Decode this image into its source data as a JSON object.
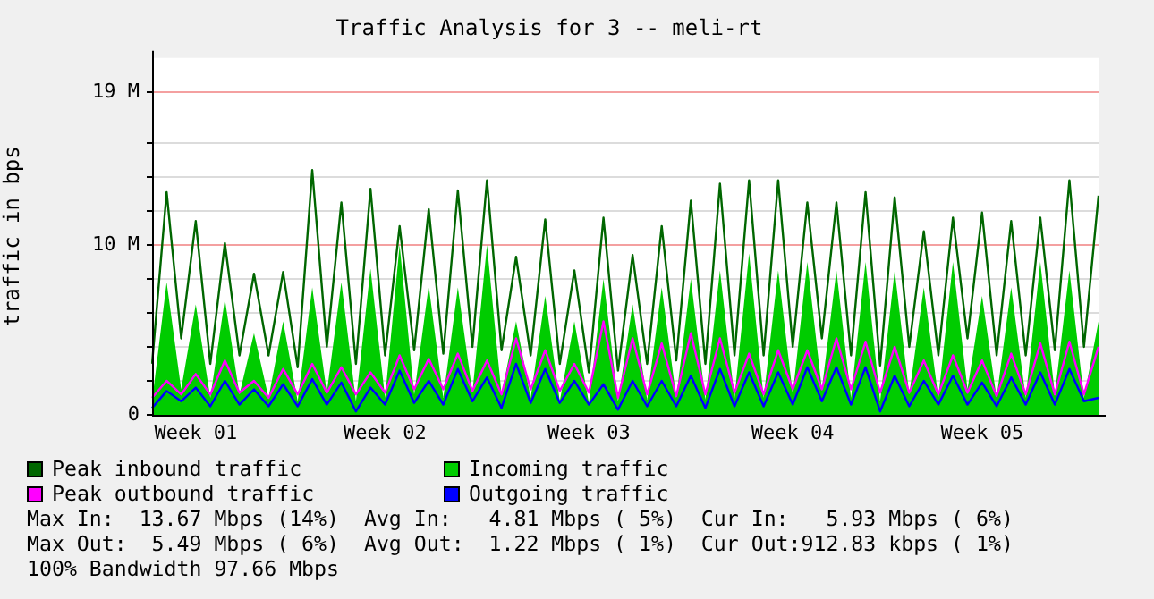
{
  "chart_data": {
    "type": "line",
    "title": "Traffic Analysis for 3 -- meli-rt",
    "ylabel": "traffic in bps",
    "categories": [
      null,
      null,
      null,
      "Week 01",
      null,
      null,
      null,
      null,
      null,
      null,
      null,
      null,
      null,
      null,
      null,
      null,
      "Week 02",
      null,
      null,
      null,
      null,
      null,
      null,
      null,
      null,
      null,
      null,
      null,
      null,
      null,
      "Week 03",
      null,
      null,
      null,
      null,
      null,
      null,
      null,
      null,
      null,
      null,
      null,
      null,
      null,
      "Week 04",
      null,
      null,
      null,
      null,
      null,
      null,
      null,
      null,
      null,
      null,
      null,
      null,
      "Week 05",
      null,
      null,
      null,
      null,
      null,
      null,
      null,
      null
    ],
    "series": [
      {
        "name": "Peak inbound traffic",
        "type": "line",
        "color": "#006600",
        "values": [
          3.0,
          13.1,
          4.5,
          11.4,
          3.0,
          10.1,
          3.5,
          8.3,
          3.5,
          8.4,
          2.8,
          14.4,
          4.0,
          12.5,
          3.0,
          13.3,
          3.5,
          11.1,
          3.8,
          12.1,
          3.6,
          13.2,
          4.0,
          13.8,
          3.8,
          9.3,
          3.5,
          11.5,
          3.0,
          8.5,
          2.5,
          11.6,
          2.6,
          9.4,
          3.0,
          11.1,
          3.2,
          12.6,
          3.0,
          13.6,
          3.5,
          13.8,
          3.5,
          13.8,
          4.0,
          12.5,
          4.5,
          12.5,
          3.5,
          13.1,
          2.9,
          12.8,
          4.0,
          10.8,
          3.5,
          11.6,
          4.5,
          11.9,
          3.5,
          11.4,
          3.5,
          11.6,
          3.8,
          13.8,
          4.0,
          12.9
        ]
      },
      {
        "name": "Incoming traffic",
        "type": "area",
        "color": "#00cc00",
        "values": [
          0.8,
          7.8,
          1.5,
          6.5,
          1.0,
          6.8,
          1.2,
          4.8,
          1.0,
          5.5,
          0.8,
          7.5,
          1.3,
          7.8,
          0.8,
          8.6,
          1.0,
          10.0,
          1.2,
          7.6,
          1.0,
          7.5,
          1.3,
          10.0,
          1.2,
          5.5,
          1.0,
          7.0,
          0.8,
          5.5,
          0.7,
          8.0,
          0.8,
          6.5,
          0.9,
          7.5,
          1.0,
          8.0,
          0.9,
          8.5,
          1.0,
          9.5,
          1.0,
          8.5,
          1.2,
          9.0,
          1.5,
          8.5,
          1.0,
          9.0,
          0.8,
          8.5,
          1.2,
          7.5,
          1.0,
          9.0,
          1.5,
          7.0,
          1.0,
          7.5,
          1.0,
          9.0,
          1.2,
          8.5,
          1.0,
          5.5
        ]
      },
      {
        "name": "Peak outbound traffic",
        "type": "line",
        "color": "#ff00ff",
        "values": [
          1.0,
          2.0,
          1.2,
          2.4,
          1.2,
          3.2,
          1.3,
          2.0,
          1.0,
          2.7,
          1.2,
          3.0,
          1.3,
          2.8,
          1.2,
          2.5,
          1.3,
          3.5,
          1.5,
          3.3,
          1.5,
          3.6,
          1.4,
          3.2,
          1.2,
          4.5,
          1.5,
          3.8,
          1.4,
          3.0,
          1.3,
          5.5,
          1.0,
          4.5,
          1.2,
          4.2,
          1.1,
          4.8,
          1.2,
          4.5,
          1.3,
          3.6,
          1.2,
          3.8,
          1.5,
          3.8,
          1.5,
          4.5,
          1.5,
          4.3,
          1.3,
          4.0,
          1.3,
          3.2,
          1.2,
          3.5,
          1.3,
          3.2,
          1.1,
          3.6,
          1.2,
          4.2,
          1.2,
          4.3,
          1.2,
          4.0
        ]
      },
      {
        "name": "Outgoing traffic",
        "type": "line",
        "color": "#0000ff",
        "values": [
          0.4,
          1.4,
          0.8,
          1.6,
          0.5,
          2.0,
          0.6,
          1.5,
          0.5,
          1.8,
          0.5,
          2.1,
          0.6,
          1.9,
          0.2,
          1.6,
          0.6,
          2.6,
          0.7,
          2.0,
          0.6,
          2.7,
          0.8,
          2.2,
          0.4,
          3.0,
          0.7,
          2.7,
          0.7,
          2.0,
          0.6,
          1.8,
          0.3,
          2.0,
          0.5,
          2.0,
          0.5,
          2.3,
          0.4,
          2.7,
          0.5,
          2.5,
          0.5,
          2.5,
          0.6,
          2.8,
          0.8,
          2.8,
          0.6,
          2.8,
          0.2,
          2.3,
          0.5,
          2.0,
          0.6,
          2.3,
          0.6,
          1.9,
          0.5,
          2.2,
          0.6,
          2.5,
          0.6,
          2.7,
          0.8,
          1.0
        ]
      }
    ],
    "ylim": [
      0,
      21
    ],
    "yticks": [
      0,
      {
        "value": 2,
        "label": null
      },
      {
        "value": 4,
        "label": null
      },
      {
        "value": 6,
        "label": null
      },
      {
        "value": 8,
        "label": null
      },
      {
        "value": 10,
        "label": "10 M"
      },
      {
        "value": 12,
        "label": null
      },
      {
        "value": 14,
        "label": null
      },
      {
        "value": 16,
        "label": null
      },
      {
        "value": 19,
        "label": "19 M"
      }
    ],
    "grid": "y",
    "legend": "bottom",
    "marker": "none",
    "annotations": [
      "Max In:  13.67 Mbps (14%)  Avg In:   4.81 Mbps ( 5%)  Cur In:   5.93 Mbps ( 6%)",
      "Max Out:  5.49 Mbps ( 6%)  Avg Out:  1.22 Mbps ( 1%)  Cur Out:912.83 kbps ( 1%)",
      "100% Bandwidth 97.66 Mbps"
    ]
  }
}
